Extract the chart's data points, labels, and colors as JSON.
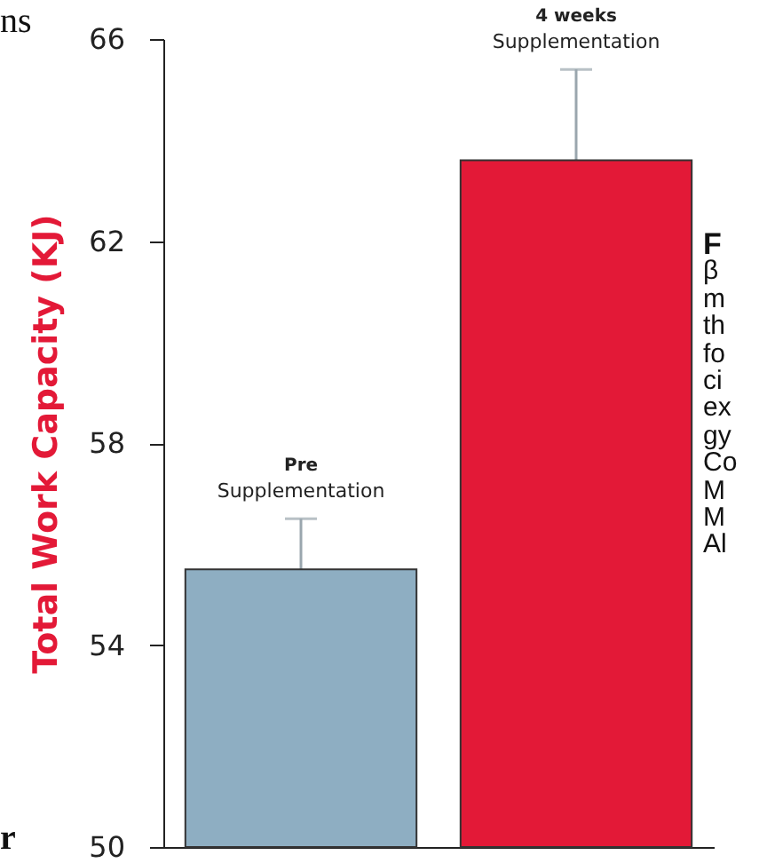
{
  "chart_data": {
    "type": "bar",
    "ylabel": "Total Work Capacity (KJ)",
    "categories": [
      "Pre",
      "4 weeks"
    ],
    "values": [
      55.5,
      63.6
    ],
    "colors": [
      "#8eaec2",
      "#e31937"
    ],
    "errors": [
      1.0,
      1.8
    ],
    "ylim": [
      50,
      66
    ],
    "yticks": [
      50,
      54,
      58,
      62,
      66
    ],
    "tick_labels": "y",
    "annotations": [
      "ns",
      "r",
      "F\nβ\nm\nth\nfo\nci\nex\ngy\nCo\nM\nM\nAl",
      {
        "text": "Supplementation",
        "x": "Pre",
        "y": 56.5
      },
      {
        "text": "Supplementation",
        "x": "4 weeks",
        "y": 65.4
      }
    ]
  }
}
